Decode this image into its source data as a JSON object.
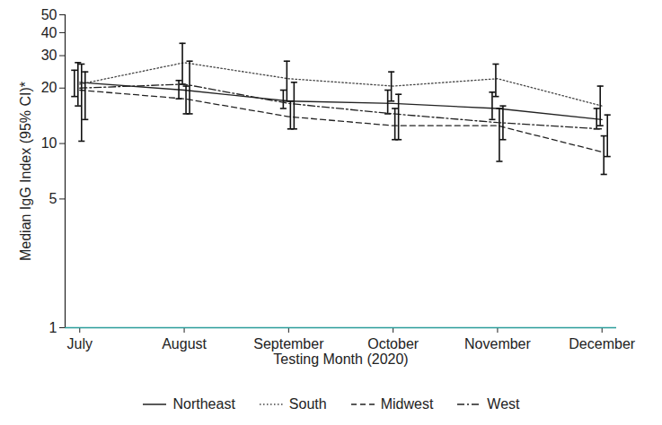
{
  "chart_data": {
    "type": "line",
    "y_label": "Median IgG Index (95% CI)*",
    "x_label": "Testing Month (2020)",
    "categories": [
      "July",
      "August",
      "September",
      "October",
      "November",
      "December"
    ],
    "log": "y",
    "ylim": [
      1,
      50
    ],
    "yticks": [
      1,
      5,
      10,
      20,
      30,
      40,
      50
    ],
    "grid": false,
    "legend": "bottom",
    "series": [
      {
        "name": "Northeast",
        "color": "#222222",
        "line_style": "solid",
        "values": [
          21.5,
          19.5,
          17,
          16.5,
          15.5,
          13.5
        ],
        "ci_low": [
          18,
          17.5,
          15.5,
          14.5,
          13.5,
          12
        ],
        "ci_high": [
          25,
          22,
          19.5,
          19.5,
          19,
          15.5
        ]
      },
      {
        "name": "South",
        "color": "#444444",
        "line_style": "dotted",
        "values": [
          21,
          27.5,
          22.5,
          20.5,
          22.5,
          16
        ],
        "ci_low": [
          16,
          21,
          17,
          17,
          18,
          12.5
        ],
        "ci_high": [
          27.5,
          35,
          28,
          24.5,
          27,
          20.5
        ]
      },
      {
        "name": "Midwest",
        "color": "#222222",
        "line_style": "dashed",
        "values": [
          19.5,
          17.5,
          14,
          12.5,
          12.5,
          9
        ],
        "ci_low": [
          10.3,
          14.5,
          12,
          10.5,
          8,
          6.8
        ],
        "ci_high": [
          27,
          20.5,
          17,
          15.5,
          15.5,
          11
        ]
      },
      {
        "name": "West",
        "color": "#222222",
        "line_style": "dashdot",
        "values": [
          20,
          21,
          16.5,
          14.5,
          13,
          12
        ],
        "ci_low": [
          13.5,
          14.5,
          12,
          10.5,
          10.5,
          8.5
        ],
        "ci_high": [
          24.5,
          28,
          21.5,
          18.5,
          16,
          14.3
        ]
      }
    ]
  }
}
